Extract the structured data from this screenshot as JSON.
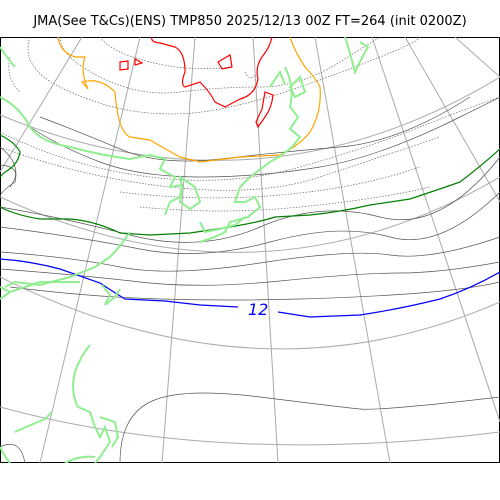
{
  "title": "JMA(See T&Cs)(ENS) TMP850 2025/12/13 00Z FT=264 (init 0200Z)",
  "map": {
    "variable": "TMP850",
    "labels": [
      {
        "text": "12",
        "color": "#0000ff"
      }
    ],
    "colors": {
      "coast": "#90ee90",
      "grid": "#aaaaaa",
      "thin_contour": "#555555",
      "dotted_contour": "#666666",
      "green_isotherm": "#008000",
      "blue_isotherm": "#0000ff",
      "orange_isotherm": "#ffa500",
      "red_isotherm": "#ff0000"
    },
    "icons": [
      "map-frame-icon"
    ]
  }
}
